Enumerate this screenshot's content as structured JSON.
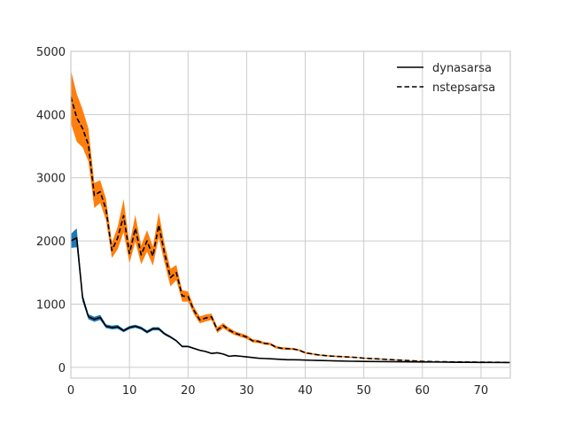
{
  "chart_data": {
    "type": "line",
    "title": "",
    "xlabel": "",
    "ylabel": "",
    "xlim": [
      0,
      75
    ],
    "ylim": [
      -170,
      5000
    ],
    "xticks": [
      0,
      10,
      20,
      30,
      40,
      50,
      60,
      70
    ],
    "yticks": [
      0,
      1000,
      2000,
      3000,
      4000,
      5000
    ],
    "xtick_labels": [
      "0",
      "10",
      "20",
      "30",
      "40",
      "50",
      "60",
      "70"
    ],
    "ytick_labels": [
      "0",
      "1000",
      "2000",
      "3000",
      "4000",
      "5000"
    ],
    "grid": true,
    "legend_position": "top-right",
    "colors": {
      "dynasarsa_band": "#1f77b4",
      "nstepsarsa_band": "#ff7f0e",
      "line": "#000000",
      "grid": "#cccccc"
    },
    "series": [
      {
        "name": "dynasarsa",
        "line_style": "solid",
        "x": [
          0,
          1,
          2,
          3,
          4,
          5,
          6,
          7,
          8,
          9,
          10,
          11,
          12,
          13,
          14,
          15,
          16,
          17,
          18,
          19,
          20,
          21,
          22,
          23,
          24,
          25,
          26,
          27,
          28,
          29,
          30,
          31,
          32,
          33,
          34,
          35,
          36,
          37,
          38,
          39,
          40,
          41,
          42,
          43,
          44,
          45,
          46,
          47,
          48,
          49,
          50,
          52,
          54,
          56,
          58,
          60,
          62,
          64,
          66,
          68,
          70,
          72,
          75
        ],
        "y": [
          2000,
          2050,
          1100,
          800,
          760,
          790,
          650,
          630,
          640,
          580,
          630,
          650,
          620,
          560,
          610,
          610,
          530,
          480,
          420,
          330,
          330,
          300,
          270,
          250,
          220,
          230,
          210,
          175,
          185,
          175,
          165,
          155,
          145,
          140,
          135,
          130,
          125,
          120,
          120,
          118,
          115,
          112,
          110,
          108,
          105,
          103,
          100,
          98,
          96,
          95,
          94,
          92,
          90,
          88,
          86,
          85,
          84,
          82,
          80,
          79,
          78,
          77,
          76
        ],
        "band": [
          110,
          150,
          60,
          40,
          40,
          40,
          30,
          30,
          30,
          25,
          25,
          25,
          25,
          25,
          25,
          25,
          20,
          18,
          15,
          15,
          12,
          12,
          10,
          10,
          10,
          10,
          8,
          8,
          8,
          8,
          8,
          6,
          6,
          6,
          6,
          6,
          5,
          5,
          5,
          5,
          5,
          5,
          5,
          4,
          4,
          4,
          4,
          4,
          4,
          4,
          4,
          4,
          4,
          4,
          3,
          3,
          3,
          3,
          3,
          3,
          3,
          3,
          3
        ]
      },
      {
        "name": "nstepsarsa",
        "line_style": "dashed",
        "x": [
          0,
          1,
          2,
          3,
          4,
          5,
          6,
          7,
          8,
          9,
          10,
          11,
          12,
          13,
          14,
          15,
          16,
          17,
          18,
          19,
          20,
          21,
          22,
          23,
          24,
          25,
          26,
          27,
          28,
          29,
          30,
          31,
          32,
          33,
          34,
          35,
          36,
          37,
          38,
          39,
          40,
          41,
          42,
          43,
          44,
          45,
          46,
          47,
          48,
          49,
          50,
          52,
          54,
          56,
          58,
          60,
          62,
          64,
          66,
          68,
          70,
          72,
          75
        ],
        "y": [
          4280,
          3950,
          3780,
          3520,
          2720,
          2780,
          2500,
          1850,
          2050,
          2400,
          1800,
          2200,
          1780,
          2000,
          1760,
          2250,
          1800,
          1420,
          1500,
          1130,
          1120,
          900,
          750,
          780,
          800,
          590,
          660,
          590,
          540,
          510,
          480,
          420,
          410,
          380,
          370,
          320,
          300,
          295,
          290,
          270,
          230,
          215,
          200,
          190,
          180,
          175,
          170,
          165,
          160,
          155,
          145,
          135,
          125,
          115,
          105,
          95,
          90,
          88,
          85,
          83,
          82,
          80,
          78
        ],
        "band": [
          420,
          380,
          300,
          260,
          200,
          180,
          170,
          120,
          180,
          260,
          150,
          210,
          150,
          170,
          150,
          200,
          150,
          140,
          120,
          90,
          80,
          60,
          55,
          55,
          50,
          45,
          40,
          35,
          30,
          30,
          30,
          25,
          25,
          20,
          20,
          20,
          18,
          18,
          15,
          15,
          15,
          12,
          12,
          10,
          10,
          10,
          10,
          10,
          8,
          8,
          8,
          8,
          6,
          6,
          6,
          6,
          5,
          5,
          5,
          5,
          5,
          5,
          5
        ]
      }
    ]
  }
}
